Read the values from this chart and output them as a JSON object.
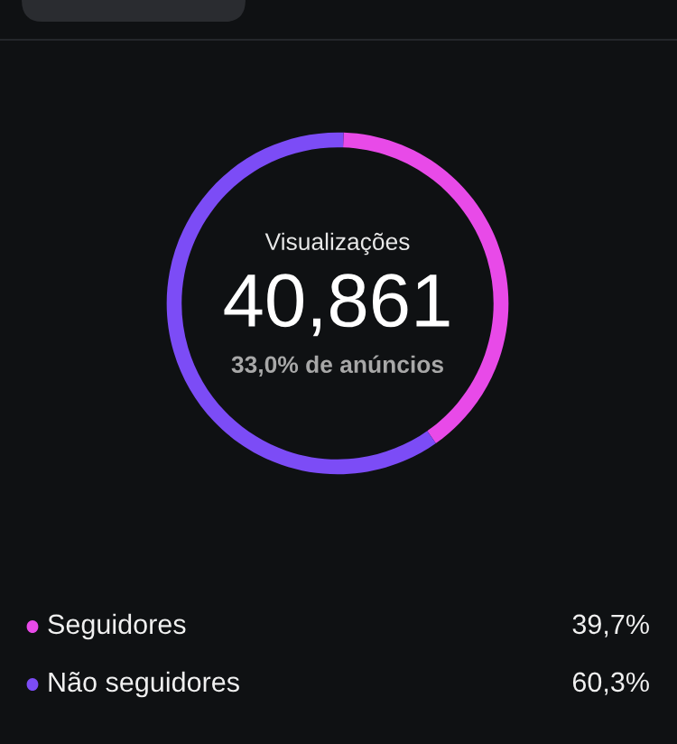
{
  "chart_data": {
    "type": "donut",
    "title": "Visualizações",
    "annotations": [
      "40,861",
      "33,0% de anúncios"
    ],
    "categories": [
      "Seguidores",
      "Não seguidores"
    ],
    "values": [
      39.7,
      60.3
    ],
    "colors": [
      "#e84ae8",
      "#7c4cf6"
    ],
    "value_labels": [
      "39,7%",
      "60,3%"
    ],
    "legend": "bottom"
  }
}
